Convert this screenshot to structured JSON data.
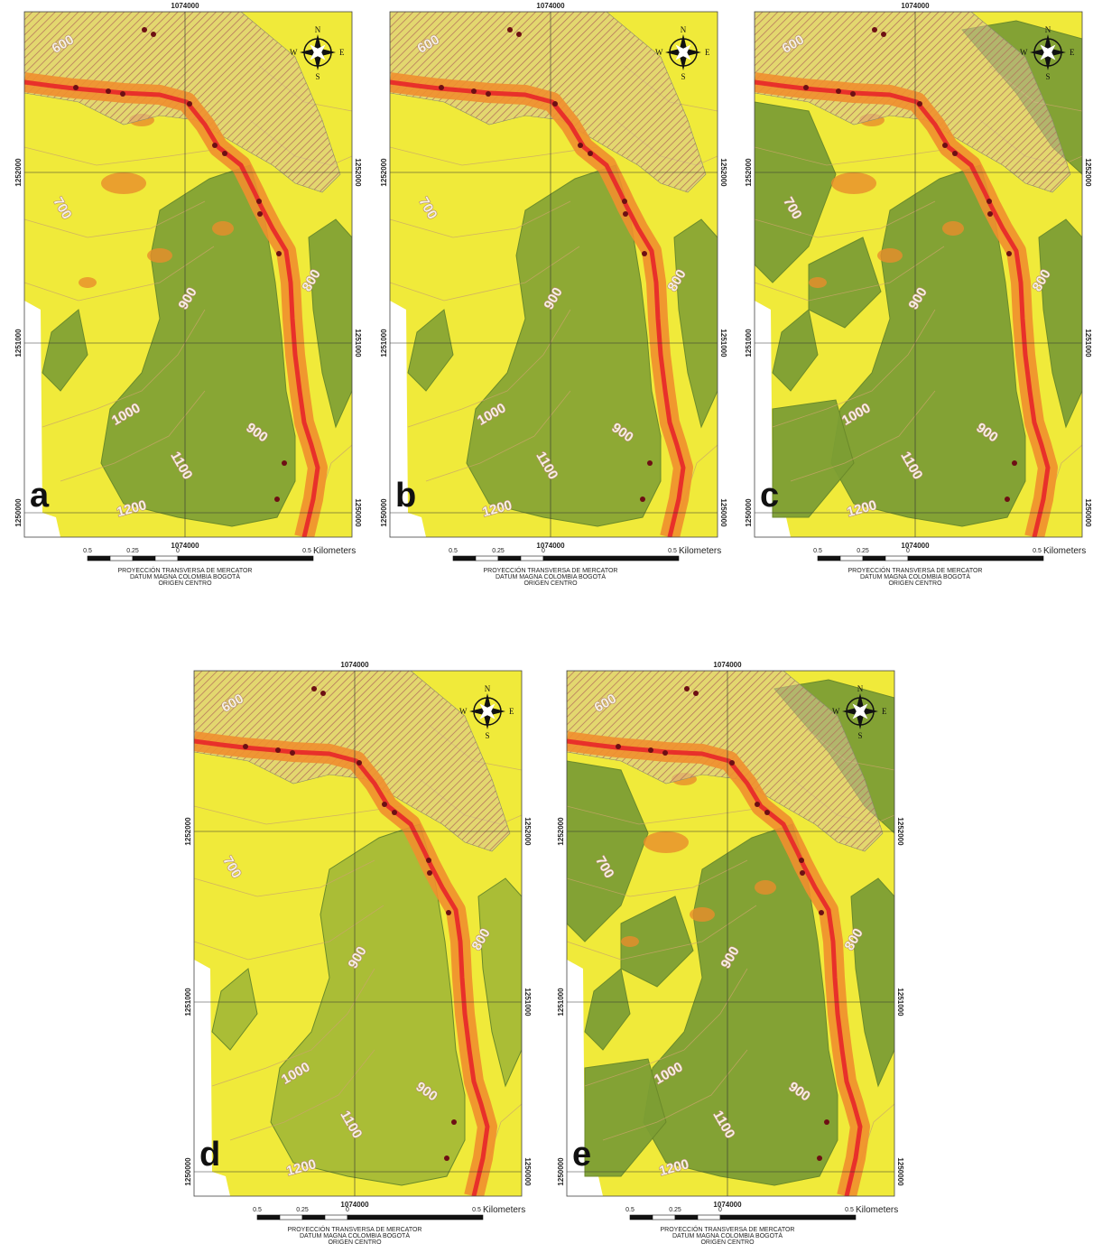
{
  "panels": [
    {
      "label": "a"
    },
    {
      "label": "b"
    },
    {
      "label": "c"
    },
    {
      "label": "d"
    },
    {
      "label": "e"
    }
  ],
  "grid_labels": {
    "easting": "1074000",
    "northings": [
      "1252000",
      "1251000",
      "1250000"
    ]
  },
  "contour_labels": [
    "600",
    "700",
    "800",
    "900",
    "1000",
    "900",
    "1100",
    "1200"
  ],
  "compass": {
    "n": "N",
    "s": "S",
    "e": "E",
    "w": "W"
  },
  "scale_bar": {
    "labels": [
      "0.5",
      "0.25",
      "0",
      "0.5"
    ],
    "unit": "Kilometers"
  },
  "projection": [
    "PROYECCIÓN TRANSVERSA DE MERCATOR",
    "DATUM MAGNA COLOMBIA BOGOTÁ",
    "ORIGEN CENTRO"
  ]
}
